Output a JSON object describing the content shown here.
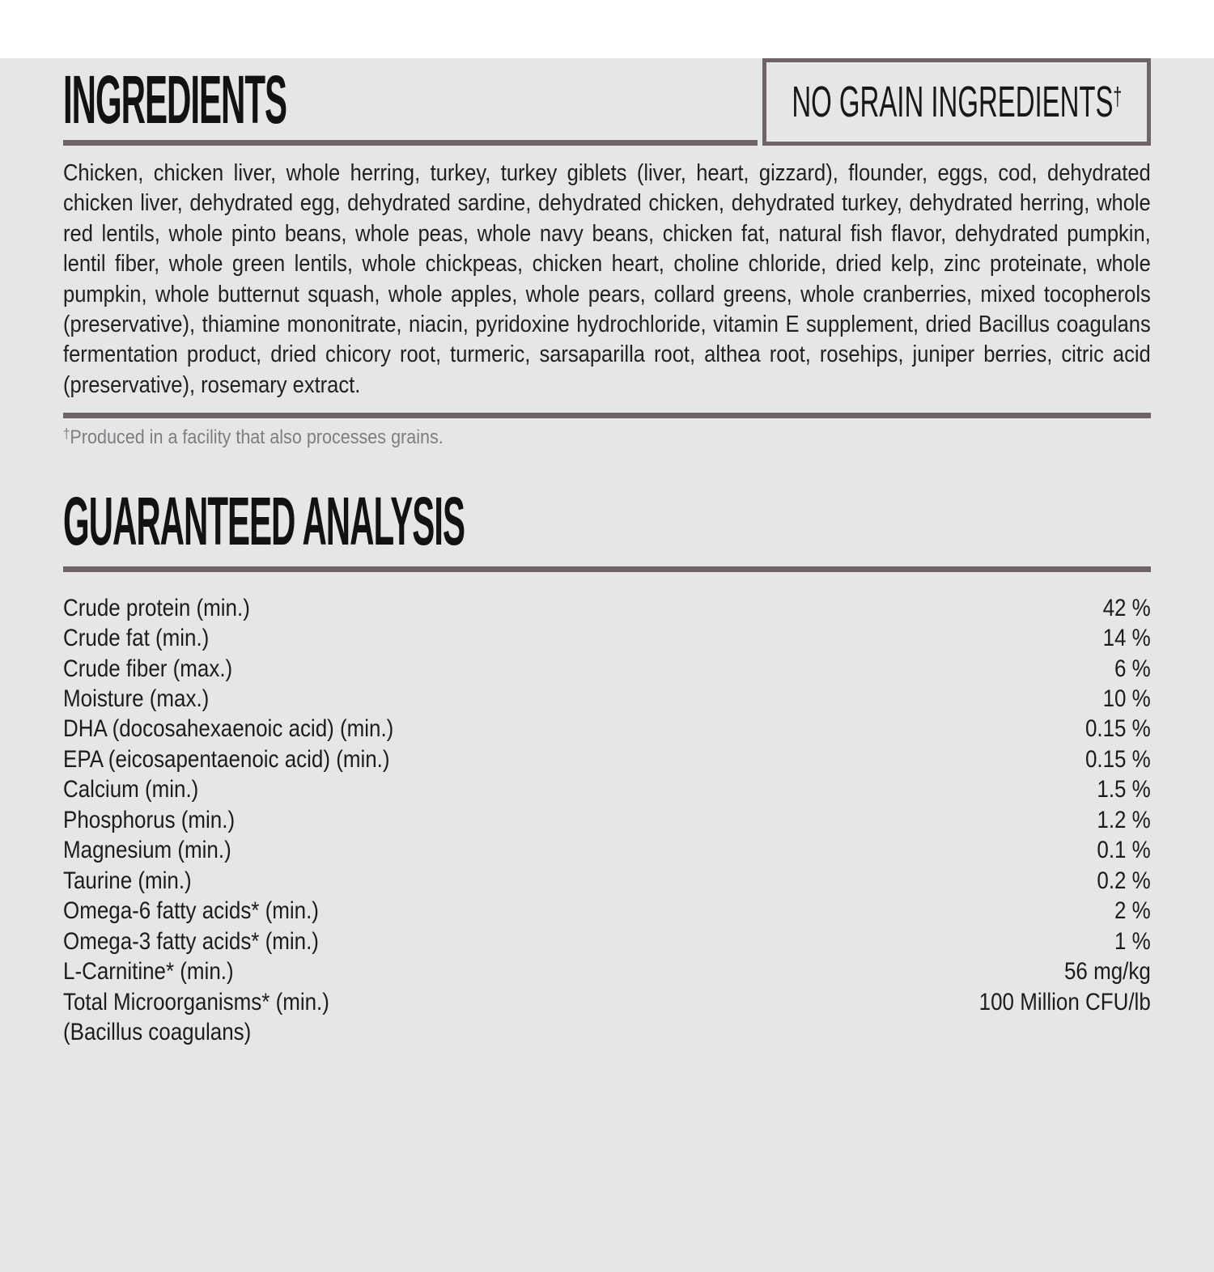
{
  "colors": {
    "background": "#e5e6e8",
    "rule": "#6e6366",
    "heading_text": "#121212",
    "body_text": "#212121",
    "footnote_text": "#7e7e80"
  },
  "ingredients": {
    "title": "INGREDIENTS",
    "badge_text": "NO GRAIN INGREDIENTS",
    "badge_sup": "†",
    "body": "Chicken, chicken liver, whole herring, turkey, turkey giblets (liver, heart, gizzard), flounder, eggs, cod, dehydrated chicken liver, dehydrated egg, dehydrated sardine, dehydrated chicken, dehydrated turkey, dehydrated herring, whole red lentils, whole pinto beans, whole peas, whole navy beans, chicken fat, natural fish flavor, dehydrated pumpkin, lentil fiber, whole green lentils, whole chickpeas, chicken heart, choline chloride, dried kelp, zinc proteinate, whole pumpkin, whole butternut squash, whole apples, whole pears, collard greens, whole cranberries, mixed tocopherols (preservative), thiamine mononitrate, niacin, pyridoxine hydrochloride, vitamin E supplement, dried Bacillus coagulans fermentation product, dried chicory root, turmeric, sarsaparilla root, althea root, rosehips, juniper berries, citric acid (preservative), rosemary extract.",
    "footnote_sup": "†",
    "footnote_text": "Produced in a facility that also processes grains."
  },
  "analysis": {
    "title": "GUARANTEED ANALYSIS",
    "rows": [
      {
        "label": "Crude protein (min.)",
        "value": "42 %"
      },
      {
        "label": "Crude fat (min.)",
        "value": "14 %"
      },
      {
        "label": "Crude fiber (max.)",
        "value": "6 %"
      },
      {
        "label": "Moisture (max.)",
        "value": "10 %"
      },
      {
        "label": "DHA (docosahexaenoic acid) (min.)",
        "value": "0.15 %"
      },
      {
        "label": "EPA (eicosapentaenoic acid) (min.)",
        "value": "0.15 %"
      },
      {
        "label": "Calcium (min.)",
        "value": "1.5 %"
      },
      {
        "label": "Phosphorus (min.)",
        "value": "1.2 %"
      },
      {
        "label": "Magnesium (min.)",
        "value": "0.1 %"
      },
      {
        "label": "Taurine (min.)",
        "value": "0.2 %"
      },
      {
        "label": "Omega-6 fatty acids* (min.)",
        "value": "2 %"
      },
      {
        "label": "Omega-3 fatty acids* (min.)",
        "value": "1 %"
      },
      {
        "label": "L-Carnitine* (min.)",
        "value": "56 mg/kg"
      },
      {
        "label": "Total Microorganisms* (min.)",
        "value": "100 Million CFU/lb"
      },
      {
        "label": "(Bacillus coagulans)",
        "value": ""
      }
    ]
  }
}
